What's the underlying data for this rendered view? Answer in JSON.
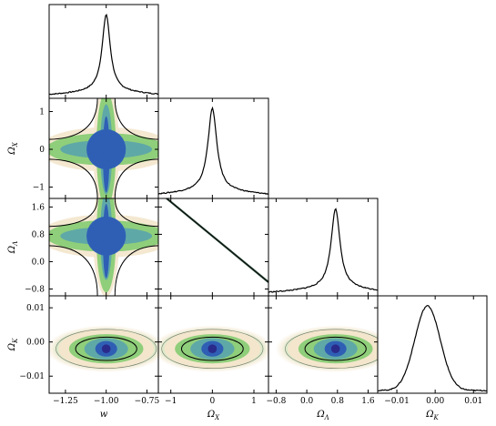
{
  "chart_data": {
    "type": "corner",
    "parameters": [
      {
        "key": "w",
        "label": "w",
        "range": [
          -1.35,
          -0.68
        ],
        "ticks": [
          -1.25,
          -1.0,
          -0.75
        ],
        "tick_labels": [
          "−1.25",
          "−1.00",
          "−0.75"
        ],
        "peak": -1.0,
        "width": 0.03
      },
      {
        "key": "ox",
        "label": "Ω_X",
        "range": [
          -1.3,
          1.35
        ],
        "ticks": [
          -1,
          0,
          1
        ],
        "tick_labels": [
          "−1",
          "0",
          "1"
        ],
        "peak": 0.0,
        "width": 0.13
      },
      {
        "key": "ol",
        "label": "Ω_Λ",
        "range": [
          -1.0,
          1.85
        ],
        "ticks": [
          -0.8,
          0.0,
          0.8,
          1.6
        ],
        "tick_labels": [
          "−0.8",
          "0.0",
          "0.8",
          "1.6"
        ],
        "peak": 0.75,
        "width": 0.14
      },
      {
        "key": "ok",
        "label": "Ω_K",
        "range": [
          -0.015,
          0.0135
        ],
        "ticks": [
          -0.01,
          0.0,
          0.01
        ],
        "tick_labels": [
          "−0.01",
          "0.00",
          "0.01"
        ],
        "peak": -0.002,
        "width": 0.0033
      }
    ],
    "row_ticks": [
      null,
      {
        "ticks": [
          -1,
          0,
          1
        ],
        "tick_labels": [
          "−1",
          "0",
          "1"
        ]
      },
      {
        "ticks": [
          -0.8,
          0.0,
          0.8,
          1.6
        ],
        "tick_labels": [
          "−0.8",
          "0.0",
          "0.8",
          "1.6"
        ]
      },
      {
        "ticks": [
          -0.01,
          0.0,
          0.01
        ],
        "tick_labels": [
          "−0.01",
          "0.00",
          "0.01"
        ]
      }
    ],
    "x_axis_labels": [
      "w",
      "Ω_X",
      "Ω_Λ",
      "Ω_K"
    ],
    "y_axis_labels": [
      "",
      "Ω_X",
      "Ω_Λ",
      "Ω_K"
    ],
    "degeneracy": {
      "pair": [
        "ox",
        "ol"
      ],
      "relation": "Ω_Λ = 0.75 − Ω_X"
    },
    "colors": {
      "outer": "#f3e6cc",
      "mid": "#8fce7a",
      "inner": "#2f5fb5",
      "core": "#2a2a8a",
      "line": "#000000"
    },
    "grid": false
  }
}
